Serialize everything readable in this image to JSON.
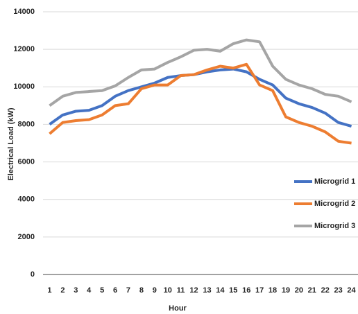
{
  "chart_data": {
    "type": "line",
    "x_label": "Hour",
    "y_label": "Electrical Load (kW)",
    "categories": [
      "1",
      "2",
      "3",
      "4",
      "5",
      "6",
      "7",
      "8",
      "9",
      "10",
      "11",
      "12",
      "13",
      "14",
      "15",
      "16",
      "17",
      "18",
      "19",
      "20",
      "21",
      "22",
      "23",
      "24"
    ],
    "series": [
      {
        "name": "Microgrid 1",
        "color": "#4472c4",
        "values": [
          8000,
          8500,
          8700,
          8750,
          9000,
          9500,
          9800,
          10000,
          10200,
          10500,
          10600,
          10650,
          10800,
          10900,
          10950,
          10800,
          10400,
          10100,
          9400,
          9100,
          8900,
          8600,
          8100,
          7900
        ]
      },
      {
        "name": "Microgrid 2",
        "color": "#ed7d31",
        "values": [
          7500,
          8100,
          8200,
          8250,
          8500,
          9000,
          9100,
          9900,
          10100,
          10100,
          10600,
          10650,
          10900,
          11100,
          11000,
          11200,
          10100,
          9800,
          8400,
          8100,
          7900,
          7600,
          7100,
          7000
        ]
      },
      {
        "name": "Microgrid 3",
        "color": "#a5a5a5",
        "values": [
          9000,
          9500,
          9700,
          9750,
          9800,
          10050,
          10500,
          10900,
          10950,
          11300,
          11600,
          11950,
          12000,
          11900,
          12300,
          12500,
          12400,
          11100,
          10400,
          10100,
          9900,
          9600,
          9500,
          9200
        ]
      }
    ],
    "ylim": [
      0,
      14000
    ],
    "yticks": [
      0,
      2000,
      4000,
      6000,
      8000,
      10000,
      12000,
      14000
    ],
    "grid": true,
    "legend": "right"
  }
}
